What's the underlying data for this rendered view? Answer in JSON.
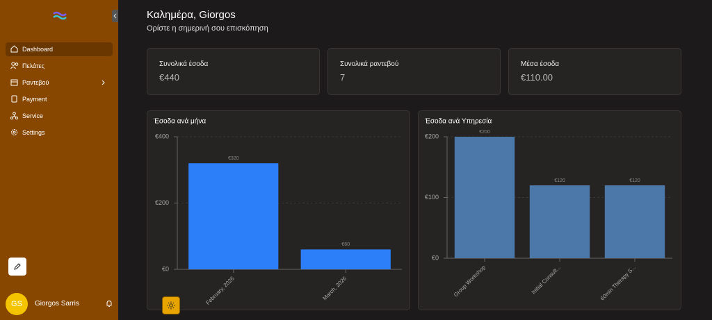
{
  "sidebar": {
    "nav": [
      "Dashboard",
      "Πελάτες",
      "Ραντεβού",
      "Payment",
      "Service",
      "Settings"
    ],
    "user": {
      "initials": "GS",
      "name": "Giorgos Sarris"
    }
  },
  "header": {
    "title": "Καλημέρα, Giorgos",
    "subtitle": "Ορίστε η σημερινή σου επισκόπηση"
  },
  "stats": [
    {
      "label": "Συνολικά έσοδα",
      "value": "€440"
    },
    {
      "label": "Συνολικά ραντεβού",
      "value": "7"
    },
    {
      "label": "Μέσα έσοδα",
      "value": "€110.00"
    }
  ],
  "chart_data": [
    {
      "type": "bar",
      "title": "Έσοδα ανά μήνα",
      "categories": [
        "February, 2026",
        "March, 2026"
      ],
      "values": [
        320,
        60
      ],
      "value_labels": [
        "€320",
        "€60"
      ],
      "color": "#2d7ff9",
      "ylim": [
        0,
        400
      ],
      "yticks": [
        {
          "value": 0,
          "label": "€0"
        },
        {
          "value": 200,
          "label": "€200"
        },
        {
          "value": 400,
          "label": "€400"
        }
      ],
      "grid": true
    },
    {
      "type": "bar",
      "title": "Έσοδα ανά Υπηρεσία",
      "categories": [
        "Group Workshop",
        "Initial Consult...",
        "60min Therapy S..."
      ],
      "values": [
        200,
        120,
        120
      ],
      "value_labels": [
        "€200",
        "€120",
        "€120"
      ],
      "color": "#4b78a8",
      "ylim": [
        0,
        200
      ],
      "yticks": [
        {
          "value": 0,
          "label": "€0"
        },
        {
          "value": 100,
          "label": "€100"
        },
        {
          "value": 200,
          "label": "€200"
        }
      ],
      "grid": true
    }
  ]
}
